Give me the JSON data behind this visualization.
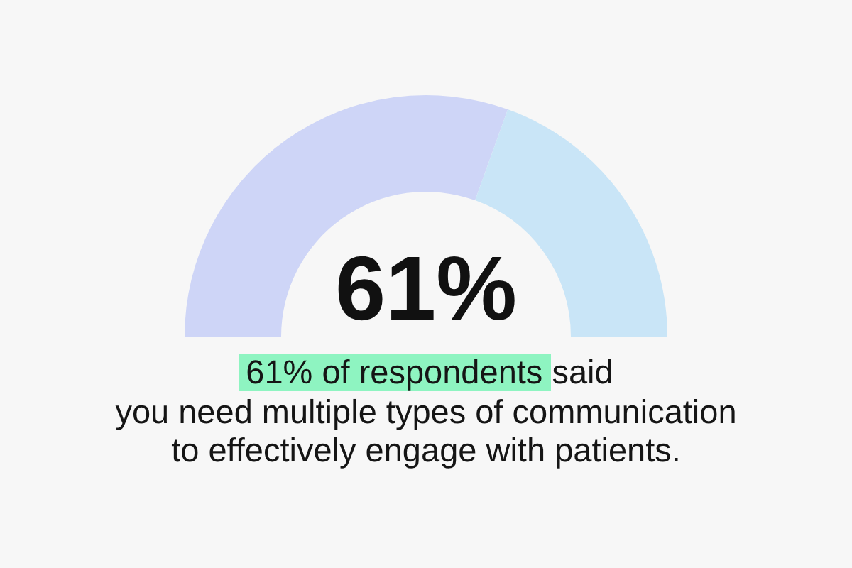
{
  "chart_data": {
    "type": "donut",
    "categories": [
      null,
      null
    ],
    "values": [
      61,
      39
    ],
    "colors": [
      "#ced5f7",
      "#c9e5f7"
    ],
    "value_labels": [
      "61%",
      null
    ],
    "annotations": [
      "61% of respondents",
      "said",
      "you need multiple types of communication\nto effectively engage with patients."
    ]
  }
}
